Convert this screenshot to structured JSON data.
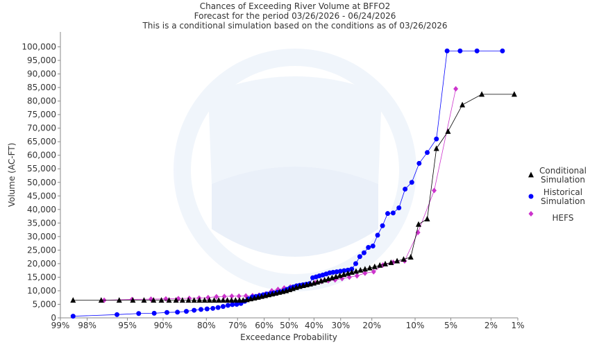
{
  "chart_data": {
    "type": "scatter",
    "title": "Chances of Exceeding River Volume at BFFO2",
    "subtitle1": "Forecast for the period 03/26/2026 - 06/24/2026",
    "subtitle2": "This is a conditional simulation based on the conditions as of 03/26/2026",
    "xlabel": "Exceedance Probability",
    "ylabel": "Volume (AC-FT)",
    "x_scale": "normal-probability",
    "ylim": [
      0,
      105000
    ],
    "grid": false,
    "legend_position": "right",
    "x_ticks": [
      {
        "p": 99,
        "label": "99%"
      },
      {
        "p": 98,
        "label": "98%"
      },
      {
        "p": 95,
        "label": "95%"
      },
      {
        "p": 90,
        "label": "90%"
      },
      {
        "p": 80,
        "label": "80%"
      },
      {
        "p": 70,
        "label": "70%"
      },
      {
        "p": 60,
        "label": "60%"
      },
      {
        "p": 50,
        "label": "50%"
      },
      {
        "p": 40,
        "label": "40%"
      },
      {
        "p": 30,
        "label": "30%"
      },
      {
        "p": 20,
        "label": "20%"
      },
      {
        "p": 10,
        "label": "10%"
      },
      {
        "p": 5,
        "label": "5%"
      },
      {
        "p": 2,
        "label": "2%"
      },
      {
        "p": 1,
        "label": "1%"
      }
    ],
    "y_ticks": [
      {
        "v": 0,
        "label": "0"
      },
      {
        "v": 5000,
        "label": "5,000"
      },
      {
        "v": 10000,
        "label": "10,000"
      },
      {
        "v": 15000,
        "label": "15,000"
      },
      {
        "v": 20000,
        "label": "20,000"
      },
      {
        "v": 25000,
        "label": "25,000"
      },
      {
        "v": 30000,
        "label": "30,000"
      },
      {
        "v": 35000,
        "label": "35,000"
      },
      {
        "v": 40000,
        "label": "40,000"
      },
      {
        "v": 45000,
        "label": "45,000"
      },
      {
        "v": 50000,
        "label": "50,000"
      },
      {
        "v": 55000,
        "label": "55,000"
      },
      {
        "v": 60000,
        "label": "60,000"
      },
      {
        "v": 65000,
        "label": "65,000"
      },
      {
        "v": 70000,
        "label": "70,000"
      },
      {
        "v": 75000,
        "label": "75,000"
      },
      {
        "v": 80000,
        "label": "80,000"
      },
      {
        "v": 85000,
        "label": "85,000"
      },
      {
        "v": 90000,
        "label": "90,000"
      },
      {
        "v": 95000,
        "label": "95,000"
      },
      {
        "v": 100000,
        "label": "100,000"
      }
    ],
    "series": [
      {
        "name": "Conditional Simulation",
        "legend_lines": [
          "Conditional",
          "Simulation"
        ],
        "marker": "triangle",
        "color": "#000000",
        "x": [
          98.6,
          97.2,
          95.8,
          94.4,
          93.0,
          91.6,
          90.3,
          88.9,
          87.5,
          86.1,
          84.7,
          83.3,
          81.9,
          80.5,
          79.1,
          77.7,
          76.3,
          74.9,
          73.5,
          72.1,
          70.7,
          69.3,
          68.0,
          66.6,
          65.2,
          63.8,
          62.4,
          61.0,
          59.6,
          58.2,
          56.8,
          55.4,
          54.0,
          52.6,
          51.2,
          49.8,
          48.5,
          47.1,
          45.7,
          44.3,
          42.9,
          41.5,
          40.1,
          38.7,
          37.3,
          35.9,
          34.5,
          33.1,
          31.7,
          30.3,
          28.9,
          27.5,
          26.2,
          24.8,
          23.4,
          22.0,
          20.6,
          19.2,
          17.8,
          16.4,
          15.0,
          13.6,
          12.2,
          10.8,
          9.4,
          8.0,
          6.7,
          5.3,
          3.9,
          2.5,
          1.1
        ],
        "y": [
          6500,
          6500,
          6500,
          6500,
          6500,
          6500,
          6500,
          6500,
          6500,
          6500,
          6500,
          6500,
          6500,
          6500,
          6500,
          6500,
          6500,
          6500,
          6500,
          6500,
          6500,
          6500,
          6500,
          6700,
          7000,
          7300,
          7600,
          7900,
          8200,
          8500,
          8800,
          9100,
          9400,
          9700,
          10000,
          10400,
          10800,
          11200,
          11600,
          11900,
          12200,
          12500,
          12800,
          13200,
          13600,
          14000,
          14400,
          14800,
          15200,
          15600,
          16000,
          16400,
          16800,
          17200,
          17600,
          18000,
          18400,
          18900,
          19400,
          19900,
          20400,
          21000,
          21600,
          22400,
          34500,
          36500,
          62500,
          68800,
          78600,
          82500,
          82500
        ]
      },
      {
        "name": "Historical Simulation",
        "legend_lines": [
          "Historical",
          "Simulation"
        ],
        "marker": "circle",
        "color": "#0000ff",
        "x": [
          98.6,
          96.0,
          93.7,
          91.5,
          89.3,
          87.2,
          85.2,
          83.3,
          81.5,
          79.8,
          78.1,
          76.5,
          74.9,
          73.3,
          71.8,
          70.3,
          68.8,
          67.4,
          66.0,
          64.6,
          63.2,
          61.8,
          60.4,
          59.0,
          57.6,
          56.2,
          54.8,
          53.5,
          52.2,
          50.9,
          49.6,
          48.3,
          47.0,
          45.7,
          44.4,
          43.1,
          41.8,
          40.5,
          39.2,
          37.9,
          36.6,
          35.3,
          34.0,
          32.7,
          31.4,
          30.1,
          28.8,
          27.5,
          26.2,
          24.9,
          23.6,
          22.3,
          21.0,
          19.7,
          18.4,
          17.1,
          15.8,
          14.5,
          13.2,
          11.9,
          10.6,
          9.3,
          8.0,
          6.7,
          5.4,
          4.1,
          2.8,
          1.5
        ],
        "y": [
          600,
          1200,
          1600,
          1700,
          2000,
          2100,
          2400,
          2800,
          3100,
          3300,
          3500,
          3800,
          4200,
          4600,
          4900,
          5000,
          5300,
          6100,
          7000,
          7700,
          7900,
          8200,
          8500,
          8800,
          9000,
          9200,
          9400,
          9600,
          10000,
          10500,
          11000,
          11400,
          11800,
          12000,
          12200,
          12400,
          12600,
          14800,
          15100,
          15500,
          15800,
          16200,
          16600,
          16800,
          17000,
          17200,
          17400,
          17600,
          18000,
          20000,
          22600,
          24000,
          26000,
          26500,
          30500,
          34000,
          38500,
          38700,
          40600,
          47500,
          50000,
          57000,
          61000,
          66000,
          98500,
          98500,
          98500,
          98500
        ]
      },
      {
        "name": "HEFS",
        "legend_lines": [
          "HEFS"
        ],
        "marker": "diamond",
        "color": "#cc33cc",
        "x": [
          97.0,
          94.5,
          92.0,
          89.5,
          87.0,
          84.5,
          82.0,
          79.5,
          77.0,
          74.5,
          72.0,
          69.5,
          67.0,
          64.5,
          62.0,
          59.5,
          57.0,
          54.5,
          52.0,
          49.5,
          47.0,
          44.5,
          42.0,
          39.5,
          37.0,
          34.5,
          32.0,
          29.5,
          27.0,
          24.5,
          22.0,
          19.5,
          17.0,
          14.5,
          12.0,
          9.5,
          7.0,
          4.5
        ],
        "y": [
          6500,
          6800,
          6900,
          7000,
          7100,
          7200,
          7300,
          7500,
          7800,
          7900,
          8000,
          8000,
          8100,
          8200,
          8400,
          8800,
          10000,
          10500,
          11000,
          11400,
          11700,
          12000,
          12500,
          13000,
          13400,
          13700,
          14000,
          14500,
          15000,
          15500,
          16500,
          17000,
          19500,
          20500,
          21000,
          31500,
          47000,
          84500
        ]
      }
    ]
  }
}
